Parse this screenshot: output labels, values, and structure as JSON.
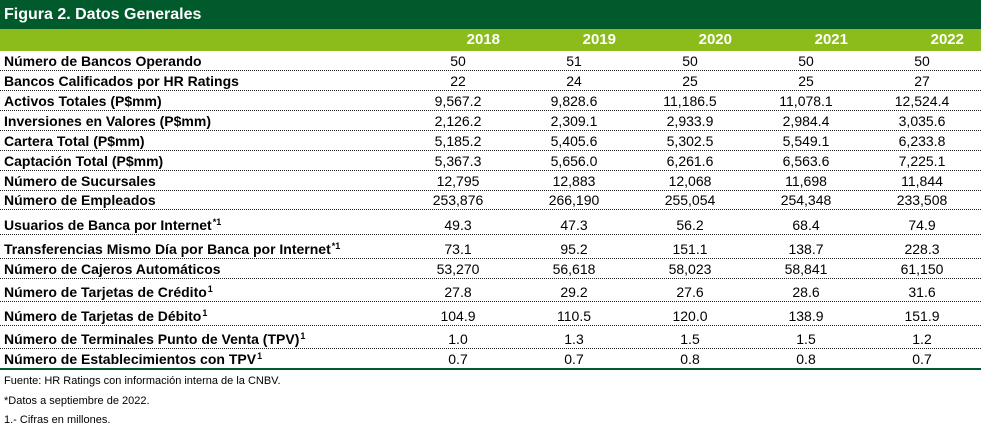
{
  "title": "Figura 2. Datos Generales",
  "years": [
    "2018",
    "2019",
    "2020",
    "2021",
    "2022"
  ],
  "rows": [
    {
      "label": "Número de Bancos Operando",
      "sup": "",
      "values": [
        "50",
        "51",
        "50",
        "50",
        "50"
      ]
    },
    {
      "label": "Bancos Calificados por HR Ratings",
      "sup": "",
      "values": [
        "22",
        "24",
        "25",
        "25",
        "27"
      ]
    },
    {
      "label": "Activos Totales (P$mm)",
      "sup": "",
      "values": [
        "9,567.2",
        "9,828.6",
        "11,186.5",
        "11,078.1",
        "12,524.4"
      ]
    },
    {
      "label": "Inversiones en Valores (P$mm)",
      "sup": "",
      "values": [
        "2,126.2",
        "2,309.1",
        "2,933.9",
        "2,984.4",
        "3,035.6"
      ]
    },
    {
      "label": "Cartera Total (P$mm)",
      "sup": "",
      "values": [
        "5,185.2",
        "5,405.6",
        "5,302.5",
        "5,549.1",
        "6,233.8"
      ]
    },
    {
      "label": "Captación Total (P$mm)",
      "sup": "",
      "values": [
        "5,367.3",
        "5,656.0",
        "6,261.6",
        "6,563.6",
        "7,225.1"
      ]
    },
    {
      "label": "Número de Sucursales",
      "sup": "",
      "values": [
        "12,795",
        "12,883",
        "12,068",
        "11,698",
        "11,844"
      ]
    },
    {
      "label": "Número de Empleados",
      "sup": "",
      "values": [
        "253,876",
        "266,190",
        "255,054",
        "254,348",
        "233,508"
      ]
    },
    {
      "label": "Usuarios de Banca por Internet",
      "sup": "*1",
      "values": [
        "49.3",
        "47.3",
        "56.2",
        "68.4",
        "74.9"
      ]
    },
    {
      "label": "Transferencias Mismo Día por Banca por Internet",
      "sup": "*1",
      "values": [
        "73.1",
        "95.2",
        "151.1",
        "138.7",
        "228.3"
      ]
    },
    {
      "label": "Número de Cajeros Automáticos",
      "sup": "",
      "values": [
        "53,270",
        "56,618",
        "58,023",
        "58,841",
        "61,150"
      ]
    },
    {
      "label": "Número de Tarjetas de Crédito",
      "sup": "1",
      "values": [
        "27.8",
        "29.2",
        "27.6",
        "28.6",
        "31.6"
      ]
    },
    {
      "label": "Número de Tarjetas de Débito",
      "sup": "1",
      "values": [
        "104.9",
        "110.5",
        "120.0",
        "138.9",
        "151.9"
      ]
    },
    {
      "label": "Número de Terminales Punto de Venta (TPV)",
      "sup": "1",
      "values": [
        "1.0",
        "1.3",
        "1.5",
        "1.5",
        "1.2"
      ]
    },
    {
      "label": "Número de Establecimientos con TPV",
      "sup": "1",
      "values": [
        "0.7",
        "0.7",
        "0.8",
        "0.8",
        "0.7"
      ]
    }
  ],
  "footnotes": [
    "Fuente: HR Ratings con información interna de la CNBV.",
    "*Datos a septiembre de 2022.",
    "1.- Cifras en millones."
  ]
}
